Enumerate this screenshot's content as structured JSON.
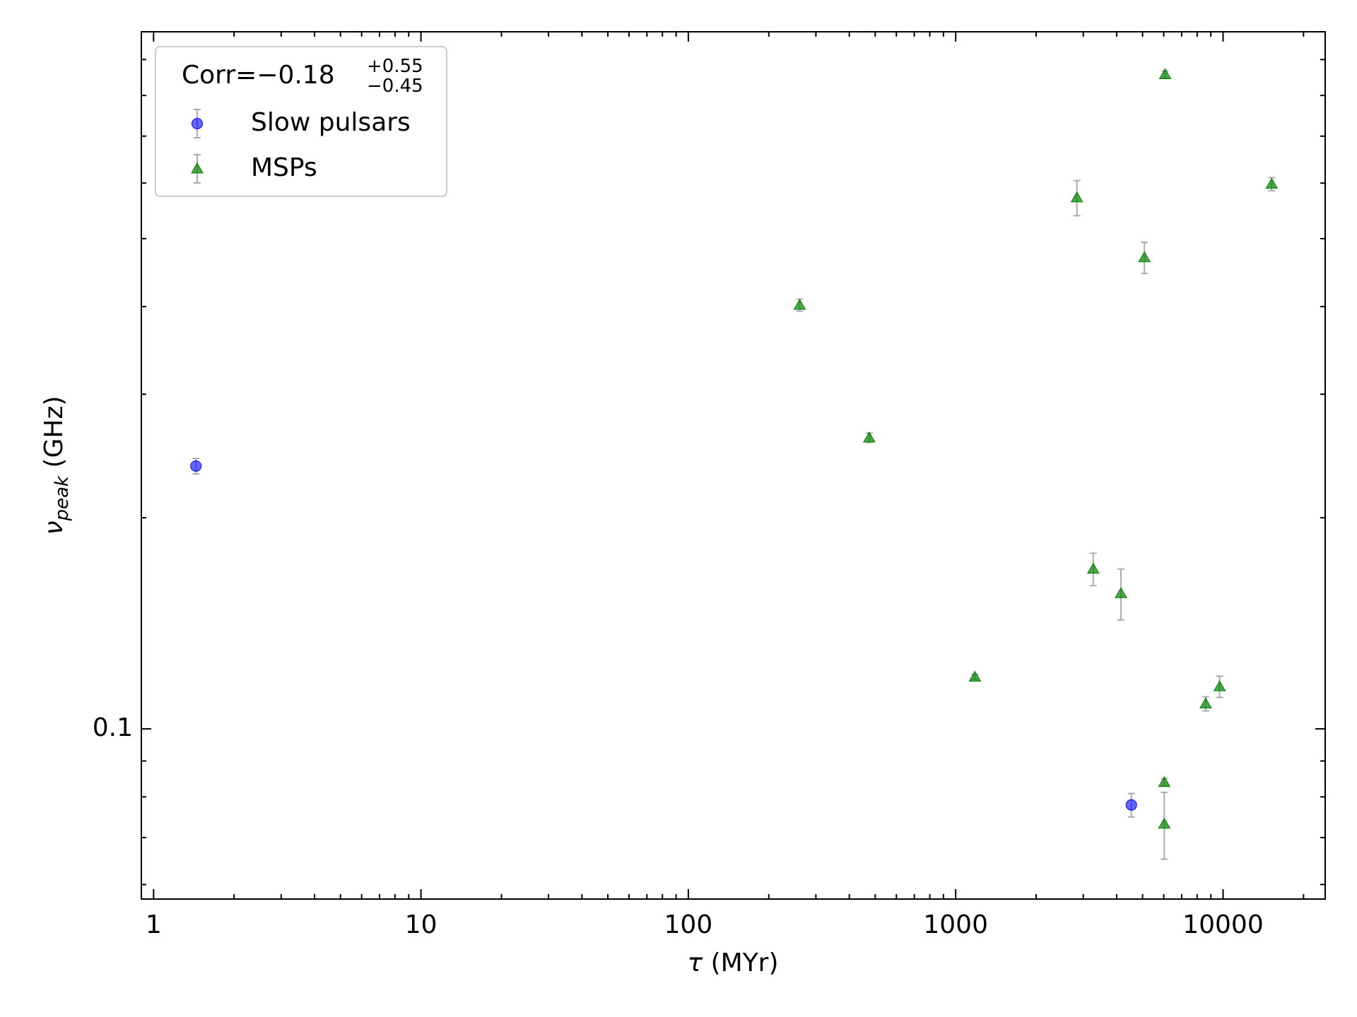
{
  "chart_data": {
    "type": "scatter",
    "xlabel": {
      "symbol": "τ",
      "unit": " (MYr)"
    },
    "ylabel": {
      "symbol": "ν",
      "sub": "peak",
      "unit": " (GHz)"
    },
    "xscale": "log",
    "yscale": "log",
    "xlim": [
      0.9,
      24100
    ],
    "ylim": [
      0.0572,
      0.986
    ],
    "xticks": [
      1,
      10,
      100,
      1000,
      10000
    ],
    "yticks": [
      0.1
    ],
    "legend": {
      "loc": "upper left",
      "title": {
        "base": "Corr=−0.18",
        "sup": "+0.55",
        "sub": "−0.45"
      }
    },
    "errorbar_color": "#999999",
    "series": [
      {
        "name": "Slow pulsars",
        "color": "#0000ff",
        "marker": "circle",
        "x": [
          1.44,
          4540
        ],
        "values": [
          0.237,
          0.0779
        ],
        "errors": [
          0.006,
          0.003
        ]
      },
      {
        "name": "MSPs",
        "color": "#008000",
        "marker": "triangle",
        "x": [
          6070,
          15200,
          2840,
          5080,
          261,
          475,
          3270,
          4150,
          1180,
          8610,
          9710,
          6030,
          6030
        ],
        "values": [
          0.857,
          0.598,
          0.572,
          0.47,
          0.402,
          0.26,
          0.169,
          0.156,
          0.1186,
          0.1086,
          0.1149,
          0.0839,
          0.0732
        ],
        "errors": [
          0.01,
          0.013,
          0.033,
          0.024,
          0.008,
          0.004,
          0.009,
          0.013,
          0.001,
          0.0025,
          0.004,
          0.001,
          0.008
        ]
      }
    ]
  }
}
